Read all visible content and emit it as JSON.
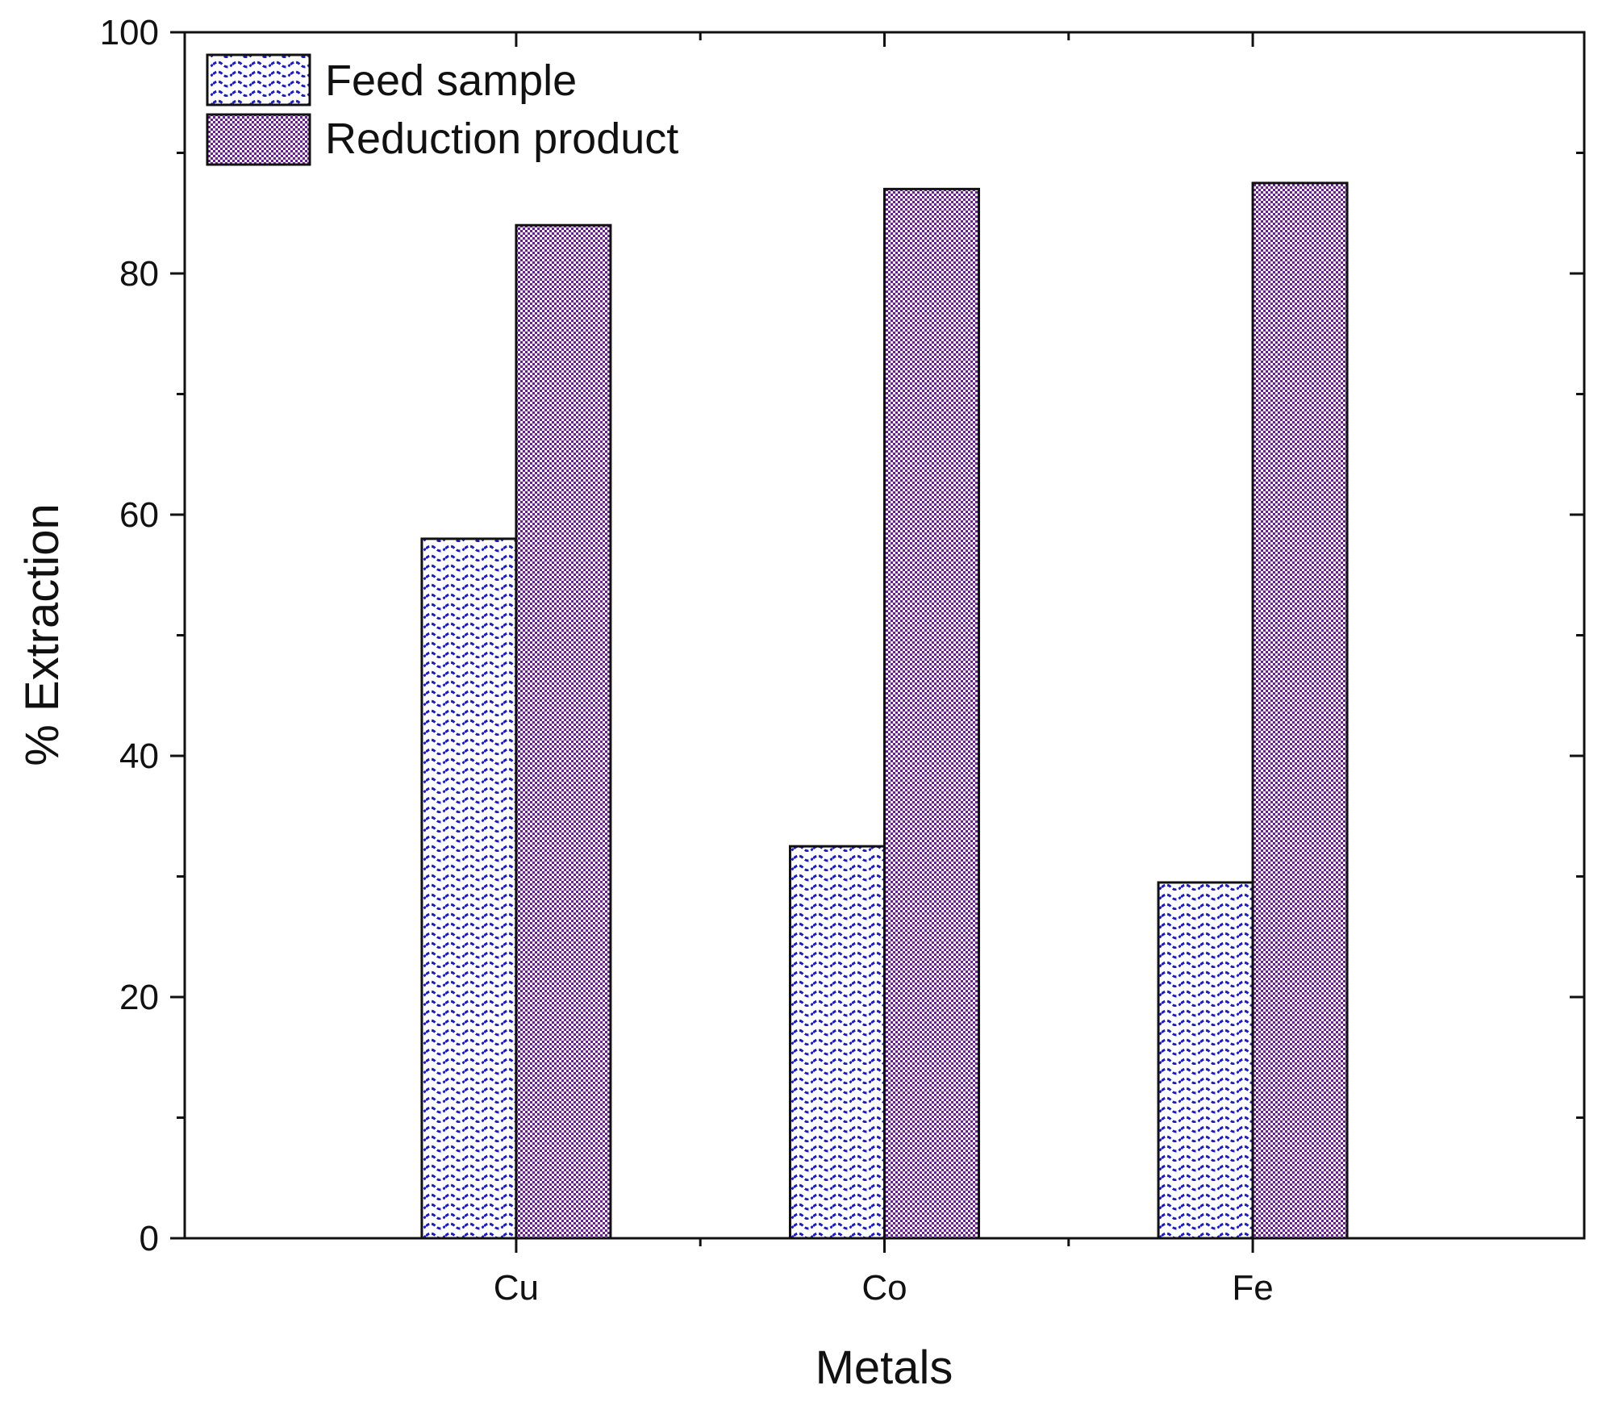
{
  "chart_data": {
    "type": "bar",
    "title": "",
    "xlabel": "Metals",
    "ylabel": "% Extraction",
    "categories": [
      "Cu",
      "Co",
      "Fe"
    ],
    "series": [
      {
        "name": "Feed sample",
        "values": [
          58,
          32.5,
          29.5
        ],
        "color": "#1a1acc",
        "pattern": "wave"
      },
      {
        "name": "Reduction product",
        "values": [
          84,
          87,
          87.5
        ],
        "color": "#6a1a9a",
        "pattern": "checker"
      }
    ],
    "ylim": [
      0,
      100
    ],
    "yticks": [
      0,
      20,
      40,
      60,
      80,
      100
    ],
    "yticklabels": [
      "0",
      "20",
      "40",
      "60",
      "80",
      "100"
    ],
    "legend": "top-left",
    "grid": false
  }
}
